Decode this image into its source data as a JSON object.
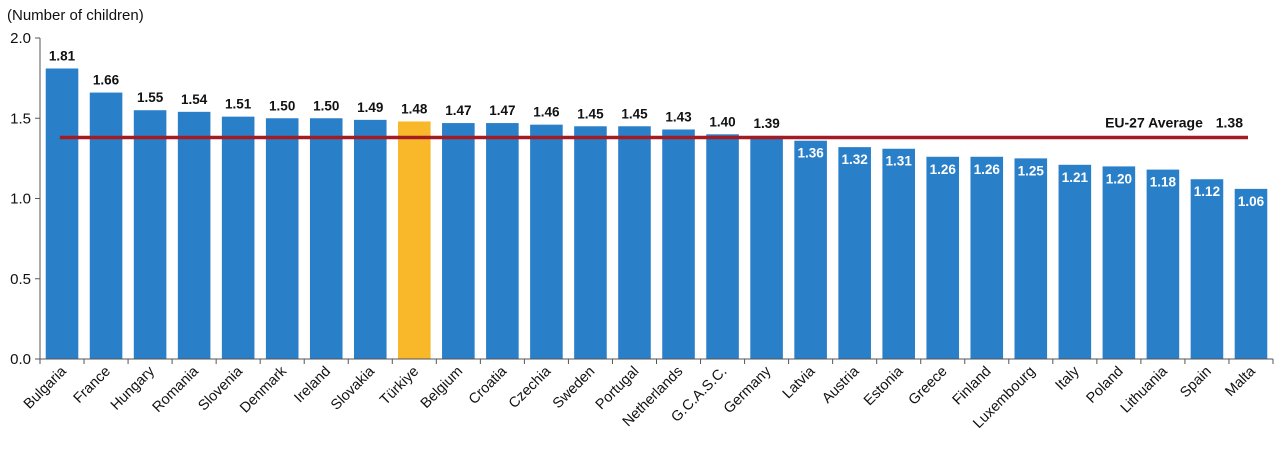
{
  "chart_data": {
    "type": "bar",
    "ylabel": "(Number of children)",
    "ylim": [
      0,
      2.0
    ],
    "yticks": [
      "0.0",
      "0.5",
      "1.0",
      "1.5",
      "2.0"
    ],
    "ytick_values": [
      0,
      0.5,
      1.0,
      1.5,
      2.0
    ],
    "categories": [
      "Bulgaria",
      "France",
      "Hungary",
      "Romania",
      "Slovenia",
      "Denmark",
      "Ireland",
      "Slovakia",
      "Türkiye",
      "Belgium",
      "Croatia",
      "Czechia",
      "Sweden",
      "Portugal",
      "Netherlands",
      "G.C.A.S.C.",
      "Germany",
      "Latvia",
      "Austria",
      "Estonia",
      "Greece",
      "Finland",
      "Luxembourg",
      "Italy",
      "Poland",
      "Lithuania",
      "Spain",
      "Malta"
    ],
    "values": [
      1.81,
      1.66,
      1.55,
      1.54,
      1.51,
      1.5,
      1.5,
      1.49,
      1.48,
      1.47,
      1.47,
      1.46,
      1.45,
      1.45,
      1.43,
      1.4,
      1.39,
      1.36,
      1.32,
      1.31,
      1.26,
      1.26,
      1.25,
      1.21,
      1.2,
      1.18,
      1.12,
      1.06
    ],
    "value_labels": [
      "1.81",
      "1.66",
      "1.55",
      "1.54",
      "1.51",
      "1.50",
      "1.50",
      "1.49",
      "1.48",
      "1.47",
      "1.47",
      "1.46",
      "1.45",
      "1.45",
      "1.43",
      "1.40",
      "1.39",
      "1.36",
      "1.32",
      "1.31",
      "1.26",
      "1.26",
      "1.25",
      "1.21",
      "1.20",
      "1.18",
      "1.12",
      "1.06"
    ],
    "highlight_category": "Türkiye",
    "reference_line": {
      "label": "EU-27 Average",
      "value": 1.38,
      "value_label": "1.38"
    },
    "grid": false,
    "legend": "none",
    "colors": {
      "bar": "#2a7fc9",
      "highlight": "#f8b82a",
      "average_line": "#a31c23",
      "label_above": "#111111",
      "label_inside": "#ffffff"
    }
  }
}
